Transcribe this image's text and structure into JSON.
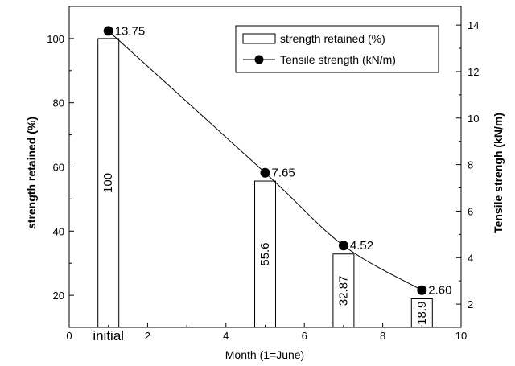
{
  "chart_data": {
    "type": "bar",
    "xlabel": "Month (1=June)",
    "ylabel_left": "strength retained (%)",
    "ylabel_right": "Tensile strengh (kN/m)",
    "xlim": [
      0,
      10
    ],
    "ylim_left": [
      10,
      110
    ],
    "ylim_right": [
      1,
      14.8
    ],
    "x_ticks": [
      0,
      2,
      4,
      6,
      8,
      10
    ],
    "x_tick_labels": [
      "0",
      "2",
      "4",
      "6",
      "8",
      "10"
    ],
    "y_left_ticks": [
      20,
      40,
      60,
      80,
      100
    ],
    "y_right_ticks": [
      2,
      4,
      6,
      8,
      10,
      12,
      14
    ],
    "category_annotation": "initial",
    "grid": false,
    "legend_position": "top-right",
    "series": [
      {
        "name": "strength retained (%)",
        "type": "bar",
        "axis": "left",
        "x": [
          1,
          5,
          7,
          9
        ],
        "values": [
          100,
          55.6,
          32.87,
          18.9
        ],
        "labels": [
          "100",
          "55.6",
          "32.87",
          "18.9"
        ]
      },
      {
        "name": "Tensile strength (kN/m)",
        "type": "line",
        "axis": "right",
        "x": [
          1,
          5,
          7,
          9
        ],
        "values": [
          13.75,
          7.65,
          4.52,
          2.6
        ],
        "labels": [
          "13.75",
          "7.65",
          "4.52",
          "2.60"
        ]
      }
    ]
  }
}
